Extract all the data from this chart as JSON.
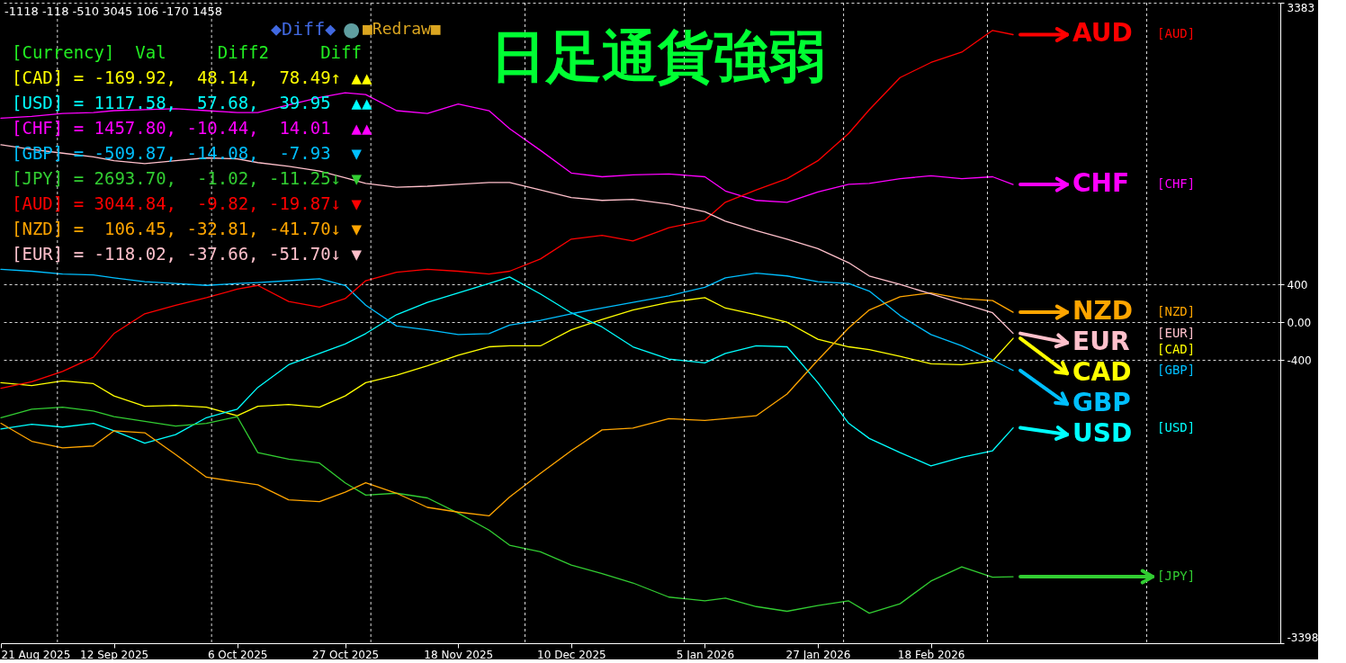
{
  "chart_data": {
    "type": "line",
    "title": "日足通貨強弱",
    "x": [
      "2025-08-21",
      "2025-08-27",
      "2025-09-02",
      "2025-09-08",
      "2025-09-12",
      "2025-09-18",
      "2025-09-24",
      "2025-09-30",
      "2025-10-06",
      "2025-10-10",
      "2025-10-16",
      "2025-10-22",
      "2025-10-27",
      "2025-10-31",
      "2025-11-06",
      "2025-11-12",
      "2025-11-18",
      "2025-11-24",
      "2025-11-28",
      "2025-12-04",
      "2025-12-10",
      "2025-12-16",
      "2025-12-22",
      "2025-12-29",
      "2026-01-05",
      "2026-01-09",
      "2026-01-15",
      "2026-01-21",
      "2026-01-27",
      "2026-02-02",
      "2026-02-06",
      "2026-02-12",
      "2026-02-18",
      "2026-02-24",
      "2026-03-02",
      "2026-03-06"
    ],
    "xlim": [
      "2025-08-21",
      "2026-04-27"
    ],
    "xticks": [
      {
        "value": "2025-08-21",
        "label": "21 Aug 2025"
      },
      {
        "value": "2025-09-12",
        "label": "12 Sep 2025"
      },
      {
        "value": "2025-10-06",
        "label": "6 Oct 2025"
      },
      {
        "value": "2025-10-27",
        "label": "27 Oct 2025"
      },
      {
        "value": "2025-11-18",
        "label": "18 Nov 2025"
      },
      {
        "value": "2025-12-10",
        "label": "10 Dec 2025"
      },
      {
        "value": "2026-01-05",
        "label": "5 Jan 2026"
      },
      {
        "value": "2026-01-27",
        "label": "27 Jan 2026"
      },
      {
        "value": "2026-02-18",
        "label": "18 Feb 2026"
      }
    ],
    "ylim": [
      -3398,
      3383
    ],
    "yticks": [
      3383,
      400,
      {
        "value": 0,
        "label": "0.00"
      },
      -400,
      -3398
    ],
    "grid": "y",
    "series": [
      {
        "name": "[CAD]",
        "color": "#ffff00",
        "values": [
          -640,
          -670,
          -620,
          -650,
          -780,
          -890,
          -880,
          -900,
          -990,
          -890,
          -870,
          -900,
          -780,
          -640,
          -560,
          -460,
          -350,
          -260,
          -250,
          -250,
          -80,
          30,
          130,
          210,
          260,
          150,
          80,
          0,
          -180,
          -260,
          -290,
          -360,
          -440,
          -450,
          -410,
          -170
        ]
      },
      {
        "name": "[USD]",
        "color": "#00ffff",
        "values": [
          -1130,
          -1080,
          -1110,
          -1070,
          -1150,
          -1280,
          -1190,
          -1010,
          -920,
          -690,
          -450,
          -330,
          -230,
          -120,
          80,
          210,
          310,
          410,
          480,
          300,
          100,
          -50,
          -260,
          -390,
          -430,
          -330,
          -250,
          -260,
          -640,
          -1070,
          -1230,
          -1380,
          -1520,
          -1430,
          -1360,
          -1118
        ]
      },
      {
        "name": "[CHF]",
        "color": "#ff00ff",
        "values": [
          2160,
          2180,
          2210,
          2220,
          2240,
          2250,
          2260,
          2240,
          2220,
          2220,
          2300,
          2380,
          2430,
          2410,
          2240,
          2210,
          2310,
          2240,
          2050,
          1820,
          1580,
          1540,
          1560,
          1570,
          1540,
          1390,
          1290,
          1270,
          1380,
          1460,
          1470,
          1520,
          1550,
          1520,
          1540,
          1458
        ]
      },
      {
        "name": "[GBP]",
        "color": "#00bfff",
        "values": [
          560,
          540,
          510,
          500,
          470,
          430,
          410,
          390,
          410,
          420,
          440,
          460,
          390,
          180,
          -40,
          -80,
          -130,
          -120,
          -30,
          20,
          90,
          150,
          210,
          280,
          370,
          470,
          520,
          490,
          430,
          410,
          330,
          70,
          -130,
          -250,
          -400,
          -510
        ]
      },
      {
        "color": "#32cd32",
        "values": [
          -1010,
          -920,
          -900,
          -940,
          -1000,
          -1050,
          -1100,
          -1070,
          -1000,
          -1380,
          -1450,
          -1490,
          -1700,
          -1830,
          -1810,
          -1860,
          -2020,
          -2200,
          -2360,
          -2430,
          -2570,
          -2660,
          -2760,
          -2910,
          -2950,
          -2920,
          -3010,
          -3060,
          -3000,
          -2950,
          -3080,
          -2980,
          -2740,
          -2590,
          -2700,
          -2694
        ]
      },
      {
        "name": "[AUD]",
        "color": "#ff0000",
        "values": [
          -700,
          -630,
          -520,
          -370,
          -120,
          90,
          180,
          260,
          350,
          390,
          220,
          160,
          250,
          440,
          530,
          560,
          540,
          510,
          540,
          670,
          880,
          920,
          860,
          1000,
          1080,
          1270,
          1400,
          1520,
          1710,
          2000,
          2250,
          2590,
          2750,
          2860,
          3090,
          3045
        ]
      },
      {
        "name": "[NZD]",
        "color": "#ffa500",
        "values": [
          -1070,
          -1260,
          -1330,
          -1310,
          -1150,
          -1170,
          -1400,
          -1640,
          -1690,
          -1720,
          -1880,
          -1900,
          -1800,
          -1700,
          -1810,
          -1960,
          -2010,
          -2050,
          -1850,
          -1600,
          -1360,
          -1140,
          -1120,
          -1020,
          -1040,
          -1020,
          -990,
          -760,
          -400,
          -60,
          130,
          270,
          310,
          250,
          230,
          106
        ]
      },
      {
        "name": "[EUR]",
        "color": "#ffc0cb",
        "values": [
          1880,
          1830,
          1790,
          1750,
          1710,
          1680,
          1710,
          1740,
          1730,
          1690,
          1650,
          1600,
          1530,
          1470,
          1430,
          1440,
          1460,
          1480,
          1480,
          1400,
          1320,
          1290,
          1300,
          1250,
          1170,
          1070,
          970,
          880,
          780,
          630,
          490,
          400,
          300,
          200,
          100,
          -118
        ]
      }
    ],
    "ref_lines": [
      {
        "axis": "x",
        "value": "2025-09-01",
        "color": "#ffffff",
        "line_style": "dashed"
      },
      {
        "axis": "x",
        "value": "2025-10-01",
        "color": "#ffffff",
        "line_style": "dashed"
      },
      {
        "axis": "x",
        "value": "2025-11-01",
        "color": "#ffffff",
        "line_style": "dashed"
      },
      {
        "axis": "x",
        "value": "2025-12-01",
        "color": "#ffffff",
        "line_style": "dashed"
      },
      {
        "axis": "x",
        "value": "2026-01-01",
        "color": "#ffffff",
        "line_style": "dashed"
      },
      {
        "axis": "x",
        "value": "2026-02-01",
        "color": "#ffffff",
        "line_style": "dashed"
      },
      {
        "axis": "x",
        "value": "2026-03-01",
        "color": "#ffffff",
        "line_style": "dashed"
      },
      {
        "axis": "x",
        "value": "2026-04-01",
        "color": "#ffffff",
        "line_style": "dashed"
      }
    ],
    "annotations": [
      "-1118 -118 -510 3045 106 -170 1458",
      "[Currency]  Val     Diff2     Diff",
      "[CAD] = -169.92,  48.14,  78.49↑ ▲▲",
      "[USD] = 1117.58,  57.68,  39.95  ▲▲",
      "[CHF] = 1457.80, -10.44,  14.01  ▲▲",
      "[GBP] = -509.87, -14.08,  -7.93  ▼",
      "[JPY] = 2693.70,  -1.02, -11.25↓ ▼",
      "[AUD] = 3044.84,  -9.82, -19.87↓ ▼",
      "[NZD] =  106.45, -32.81, -41.70↓ ▼",
      "[EUR] = -118.02, -37.66, -51.70↓ ▼",
      "◆Diff◆",
      "●",
      "■Redraw■",
      {
        "text": "AUD",
        "x": "2026-03-06",
        "y": 3045
      },
      {
        "text": "CHF",
        "x": "2026-03-06",
        "y": 1458
      },
      {
        "text": "CAD",
        "x": "2026-03-06",
        "y": -170
      },
      {
        "text": "NZD",
        "x": "2026-03-06",
        "y": 106
      },
      {
        "text": "GBP",
        "x": "2026-03-06",
        "y": -510
      },
      {
        "text": "EUR",
        "x": "2026-03-06",
        "y": -118
      },
      {
        "text": "USD",
        "x": "2026-03-06",
        "y": -1118
      },
      {
        "text": "[JPY]",
        "x": "2026-03-06",
        "y": -2694
      }
    ]
  }
}
